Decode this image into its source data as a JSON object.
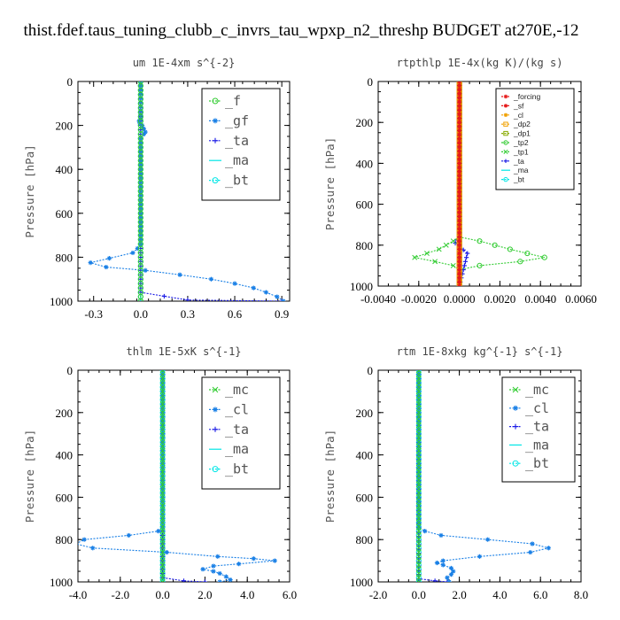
{
  "page_title": "thist.fdef.taus_tuning_clubb_c_invrs_tau_wpxp_n2_threshp  BUDGET at270E,-12",
  "colors": {
    "green": "#33cc33",
    "blue": "#1a80e6",
    "darkblue": "#1a1ae6",
    "cyan": "#00e6e6",
    "red": "#e61a1a",
    "orange": "#f0a000",
    "olive": "#88aa00"
  },
  "chart_data": [
    {
      "type": "line",
      "title": "um  1E-4xm s^{-2}",
      "ylabel": "Pressure [hPa]",
      "xlim": [
        -0.4,
        0.95
      ],
      "ylim": [
        1000,
        0
      ],
      "xticks": [
        -0.3,
        0.0,
        0.3,
        0.6,
        0.9
      ],
      "xtick_labels": [
        "-0.3",
        "0.0",
        "0.3",
        "0.6",
        "0.9"
      ],
      "yticks": [
        0,
        200,
        400,
        600,
        800,
        1000
      ],
      "ytick_labels": [
        "0",
        "200",
        "400",
        "600",
        "800",
        "1000"
      ],
      "legend_position": "top-right",
      "legend_style": "big",
      "series": [
        {
          "name": "_f",
          "color": "#33cc33",
          "marker": "o",
          "points": [
            [
              0,
              0
            ],
            [
              0,
              200
            ],
            [
              0,
              400
            ],
            [
              0,
              600
            ],
            [
              0,
              800
            ],
            [
              0,
              1000
            ]
          ]
        },
        {
          "name": "_gf",
          "color": "#1a80e6",
          "marker": "*",
          "points": [
            [
              0,
              0
            ],
            [
              0,
              170
            ],
            [
              -0.01,
              180
            ],
            [
              -0.005,
              190
            ],
            [
              0.01,
              200
            ],
            [
              0.03,
              230
            ],
            [
              0.02,
              240
            ],
            [
              0,
              260
            ],
            [
              0,
              400
            ],
            [
              0,
              600
            ],
            [
              0,
              740
            ],
            [
              -0.02,
              760
            ],
            [
              -0.05,
              780
            ],
            [
              -0.2,
              805
            ],
            [
              -0.32,
              825
            ],
            [
              -0.22,
              845
            ],
            [
              0.03,
              860
            ],
            [
              0.25,
              880
            ],
            [
              0.45,
              900
            ],
            [
              0.6,
              920
            ],
            [
              0.72,
              940
            ],
            [
              0.8,
              960
            ],
            [
              0.87,
              980
            ],
            [
              0.91,
              1000
            ]
          ]
        },
        {
          "name": "_ta",
          "color": "#1a1ae6",
          "marker": "+",
          "points": [
            [
              0,
              0
            ],
            [
              0,
              600
            ],
            [
              0,
              960
            ],
            [
              0.3,
              995
            ],
            [
              0.9,
              1000
            ]
          ]
        },
        {
          "name": "_ma",
          "color": "#00e6e6",
          "marker": "-",
          "points": [
            [
              0,
              0
            ],
            [
              0,
              1000
            ]
          ]
        },
        {
          "name": "_bt",
          "color": "#00e6e6",
          "marker": "o",
          "points": [
            [
              0,
              0
            ],
            [
              0,
              1000
            ]
          ]
        }
      ]
    },
    {
      "type": "line",
      "title": "rtpthlp  1E-4x(kg K)/(kg s)",
      "ylabel": "Pressure [hPa]",
      "xlim": [
        -0.004,
        0.006
      ],
      "ylim": [
        1000,
        0
      ],
      "xticks": [
        -0.004,
        -0.002,
        0.0,
        0.002,
        0.004,
        0.006
      ],
      "xtick_labels": [
        "-0.0040",
        "-0.0020",
        "0.0000",
        "0.0020",
        "0.0040",
        "0.0060"
      ],
      "yticks": [
        0,
        200,
        400,
        600,
        800,
        1000
      ],
      "ytick_labels": [
        "0",
        "200",
        "400",
        "600",
        "800",
        "1000"
      ],
      "legend_position": "top-right",
      "legend_style": "small",
      "series": [
        {
          "name": "_forcing",
          "color": "#e61a1a",
          "marker": "*",
          "points": [
            [
              0,
              0
            ],
            [
              0,
              1000
            ]
          ]
        },
        {
          "name": "_sf",
          "color": "#e61a1a",
          "marker": "*",
          "points": [
            [
              0,
              0
            ],
            [
              0,
              1000
            ]
          ]
        },
        {
          "name": "_cl",
          "color": "#f0a000",
          "marker": "*",
          "points": [
            [
              0,
              0
            ],
            [
              0,
              1000
            ]
          ]
        },
        {
          "name": "_dp2",
          "color": "#f0a000",
          "marker": "s",
          "points": [
            [
              0,
              0
            ],
            [
              0,
              1000
            ]
          ]
        },
        {
          "name": "_dp1",
          "color": "#88aa00",
          "marker": "s",
          "points": [
            [
              0,
              0
            ],
            [
              0,
              1000
            ]
          ]
        },
        {
          "name": "_tp2",
          "color": "#33cc33",
          "marker": "o",
          "points": [
            [
              0,
              0
            ],
            [
              0,
              760
            ],
            [
              0.001,
              780
            ],
            [
              0.0025,
              820
            ],
            [
              0.0042,
              860
            ],
            [
              0.003,
              880
            ],
            [
              0.001,
              900
            ],
            [
              0,
              920
            ],
            [
              0,
              1000
            ]
          ]
        },
        {
          "name": "_tp1",
          "color": "#33cc33",
          "marker": "x",
          "points": [
            [
              0,
              0
            ],
            [
              0,
              760
            ],
            [
              -0.0003,
              780
            ],
            [
              -0.001,
              820
            ],
            [
              -0.0022,
              860
            ],
            [
              -0.0012,
              880
            ],
            [
              -0.0003,
              900
            ],
            [
              0,
              920
            ],
            [
              0,
              1000
            ]
          ]
        },
        {
          "name": "_ta",
          "color": "#1a1ae6",
          "marker": "+",
          "points": [
            [
              0,
              0
            ],
            [
              0,
              760
            ],
            [
              -0.0002,
              790
            ],
            [
              0.0004,
              840
            ],
            [
              0.0003,
              880
            ],
            [
              0,
              1000
            ]
          ]
        },
        {
          "name": "_ma",
          "color": "#00e6e6",
          "marker": "-",
          "points": [
            [
              0,
              0
            ],
            [
              0,
              1000
            ]
          ]
        },
        {
          "name": "_bt",
          "color": "#00e6e6",
          "marker": "o",
          "points": [
            [
              0,
              0
            ],
            [
              0,
              1000
            ]
          ]
        }
      ]
    },
    {
      "type": "line",
      "title": "thlm  1E-5xK s^{-1}",
      "ylabel": "Pressure [hPa]",
      "xlim": [
        -4.0,
        6.0
      ],
      "ylim": [
        1000,
        0
      ],
      "xticks": [
        -4.0,
        -2.0,
        0.0,
        2.0,
        4.0,
        6.0
      ],
      "xtick_labels": [
        "-4.0",
        "-2.0",
        "0.0",
        "2.0",
        "4.0",
        "6.0"
      ],
      "yticks": [
        0,
        200,
        400,
        600,
        800,
        1000
      ],
      "ytick_labels": [
        "0",
        "200",
        "400",
        "600",
        "800",
        "1000"
      ],
      "legend_position": "top-right",
      "legend_style": "big",
      "series": [
        {
          "name": "_mc",
          "color": "#33cc33",
          "marker": "x",
          "points": [
            [
              0,
              0
            ],
            [
              0,
              1000
            ]
          ]
        },
        {
          "name": "_cl",
          "color": "#1a80e6",
          "marker": "*",
          "points": [
            [
              0,
              0
            ],
            [
              0,
              740
            ],
            [
              -0.2,
              760
            ],
            [
              -1.6,
              780
            ],
            [
              -3.7,
              800
            ],
            [
              -4.1,
              820
            ],
            [
              -3.3,
              840
            ],
            [
              0.2,
              860
            ],
            [
              2.6,
              880
            ],
            [
              4.3,
              890
            ],
            [
              5.3,
              900
            ],
            [
              3.6,
              915
            ],
            [
              2.4,
              925
            ],
            [
              1.9,
              940
            ],
            [
              2.4,
              950
            ],
            [
              2.7,
              960
            ],
            [
              3.0,
              975
            ],
            [
              3.2,
              990
            ],
            [
              2.7,
              1000
            ]
          ]
        },
        {
          "name": "_ta",
          "color": "#1a1ae6",
          "marker": "+",
          "points": [
            [
              0,
              0
            ],
            [
              0,
              980
            ],
            [
              1.0,
              995
            ],
            [
              2.0,
              1000
            ]
          ]
        },
        {
          "name": "_ma",
          "color": "#00e6e6",
          "marker": "-",
          "points": [
            [
              0,
              0
            ],
            [
              0,
              1000
            ]
          ]
        },
        {
          "name": "_bt",
          "color": "#00e6e6",
          "marker": "o",
          "points": [
            [
              0,
              0
            ],
            [
              0,
              1000
            ]
          ]
        }
      ]
    },
    {
      "type": "line",
      "title": "rtm  1E-8xkg kg^{-1} s^{-1}",
      "ylabel": "Pressure [hPa]",
      "xlim": [
        -2.0,
        8.0
      ],
      "ylim": [
        1000,
        0
      ],
      "xticks": [
        -2.0,
        0.0,
        2.0,
        4.0,
        6.0,
        8.0
      ],
      "xtick_labels": [
        "-2.0",
        "0.0",
        "2.0",
        "4.0",
        "6.0",
        "8.0"
      ],
      "yticks": [
        0,
        200,
        400,
        600,
        800,
        1000
      ],
      "ytick_labels": [
        "0",
        "200",
        "400",
        "600",
        "800",
        "1000"
      ],
      "legend_position": "top-right",
      "legend_style": "big",
      "series": [
        {
          "name": "_mc",
          "color": "#33cc33",
          "marker": "x",
          "points": [
            [
              0,
              0
            ],
            [
              0,
              1000
            ]
          ]
        },
        {
          "name": "_cl",
          "color": "#1a80e6",
          "marker": "*",
          "points": [
            [
              0,
              0
            ],
            [
              0,
              740
            ],
            [
              0.3,
              760
            ],
            [
              1.1,
              780
            ],
            [
              3.4,
              800
            ],
            [
              5.6,
              820
            ],
            [
              6.4,
              840
            ],
            [
              5.5,
              860
            ],
            [
              3.0,
              880
            ],
            [
              1.2,
              900
            ],
            [
              0.9,
              910
            ],
            [
              1.2,
              920
            ],
            [
              1.6,
              935
            ],
            [
              1.7,
              950
            ],
            [
              1.6,
              965
            ],
            [
              1.4,
              980
            ],
            [
              1.5,
              1000
            ]
          ]
        },
        {
          "name": "_ta",
          "color": "#1a1ae6",
          "marker": "+",
          "points": [
            [
              0,
              0
            ],
            [
              0,
              985
            ],
            [
              0.8,
              995
            ],
            [
              1.4,
              1000
            ]
          ]
        },
        {
          "name": "_ma",
          "color": "#00e6e6",
          "marker": "-",
          "points": [
            [
              0,
              0
            ],
            [
              0,
              1000
            ]
          ]
        },
        {
          "name": "_bt",
          "color": "#00e6e6",
          "marker": "o",
          "points": [
            [
              0,
              0
            ],
            [
              0,
              1000
            ]
          ]
        }
      ]
    }
  ]
}
